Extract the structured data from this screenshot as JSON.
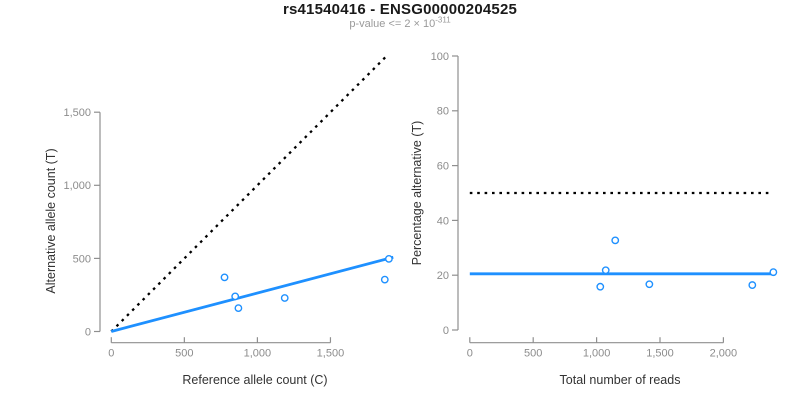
{
  "header": {
    "title": "rs41540416 - ENSG00000204525",
    "subtitle_base": "p-value <= 2 × 10",
    "subtitle_exponent": "-311"
  },
  "colors": {
    "accent_blue": "#1E90FF",
    "dashed_black": "#000000",
    "axis_gray": "#8f8f8f",
    "tick_label_gray": "#8c8c8c",
    "axis_title_dark": "#333333",
    "subtitle_gray": "#9a9a9a"
  },
  "chart_data": [
    {
      "type": "scatter",
      "panel": "left",
      "xlabel": "Reference allele count (C)",
      "ylabel": "Alternative allele count (T)",
      "xlim": [
        0,
        1975
      ],
      "ylim": [
        0,
        1975
      ],
      "grid": false,
      "legend": "none",
      "x_ticks": {
        "values": [
          0,
          500,
          1000,
          1500
        ],
        "labels": [
          "0",
          "500",
          "1,000",
          "1,500"
        ]
      },
      "y_ticks": {
        "values": [
          0,
          500,
          1000,
          1500
        ],
        "labels": [
          "0",
          "500",
          "1,000",
          "1,500"
        ]
      },
      "points": [
        [
          775,
          370
        ],
        [
          848,
          240
        ],
        [
          870,
          160
        ],
        [
          1187,
          229
        ],
        [
          1872,
          355
        ],
        [
          1900,
          497
        ]
      ],
      "lines": [
        {
          "name": "identity-line-dashed",
          "style": "dashed",
          "color": "#000000",
          "from": [
            0,
            0
          ],
          "to": [
            1890,
            1890
          ]
        },
        {
          "name": "allelic-ratio-fit-line",
          "style": "solid",
          "color": "#1E90FF",
          "from": [
            0,
            0
          ],
          "to": [
            1930,
            508
          ]
        }
      ]
    },
    {
      "type": "scatter",
      "panel": "right",
      "xlabel": "Total number of reads",
      "ylabel": "Percentage alternative (T)",
      "xlim": [
        0,
        2450
      ],
      "ylim": [
        0,
        100
      ],
      "grid": false,
      "legend": "none",
      "x_ticks": {
        "values": [
          0,
          500,
          1000,
          1500,
          2000
        ],
        "labels": [
          "0",
          "500",
          "1,000",
          "1,500",
          "2,000"
        ]
      },
      "y_ticks": {
        "values": [
          0,
          20,
          40,
          60,
          80,
          100
        ],
        "labels": [
          "0",
          "20",
          "40",
          "60",
          "80",
          "100"
        ]
      },
      "points": [
        [
          1147,
          32.7
        ],
        [
          1072,
          21.8
        ],
        [
          1029,
          15.8
        ],
        [
          1416,
          16.7
        ],
        [
          2228,
          16.4
        ],
        [
          2394,
          21.1
        ]
      ],
      "lines": [
        {
          "name": "expected-50pct-dashed-line",
          "style": "dashed",
          "color": "#000000",
          "from": [
            0,
            50
          ],
          "to": [
            2360,
            50
          ]
        },
        {
          "name": "observed-pct-line",
          "style": "solid",
          "color": "#1E90FF",
          "from": [
            0,
            20.5
          ],
          "to": [
            2400,
            20.5
          ]
        }
      ]
    }
  ]
}
